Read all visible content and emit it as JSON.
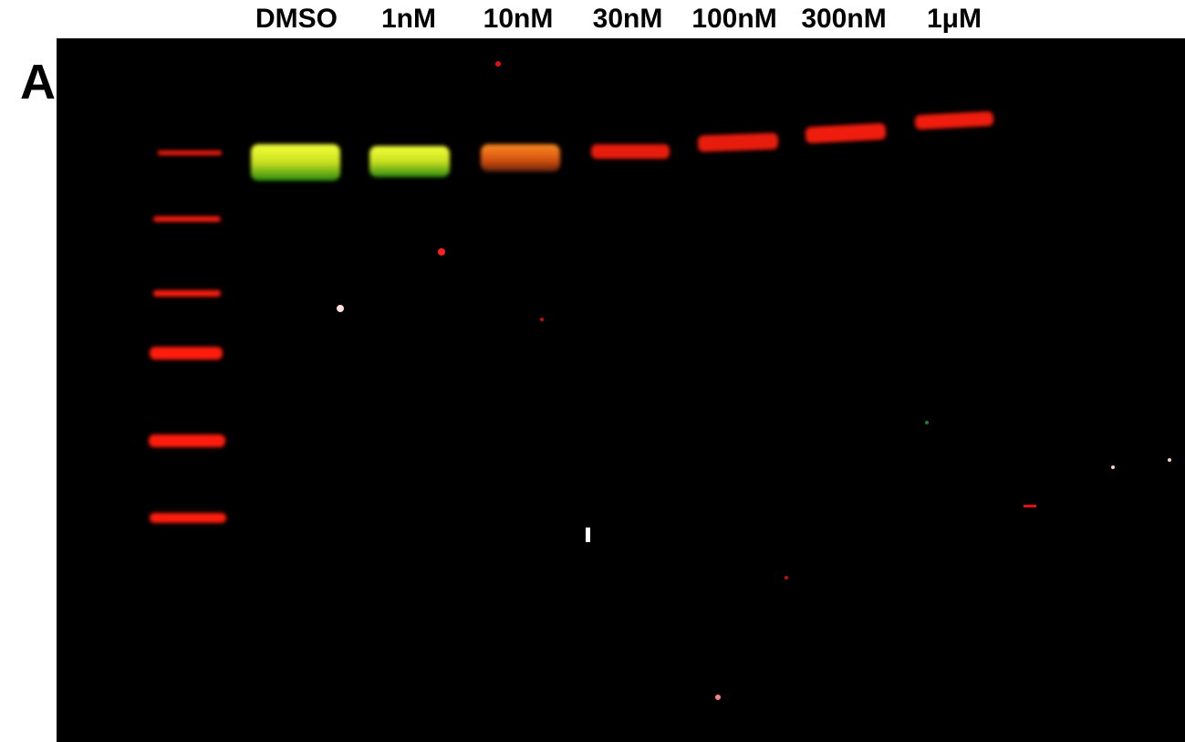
{
  "panel_label": "A",
  "lanes": [
    "DMSO",
    "1nM",
    "10nM",
    "30nM",
    "100nM",
    "300nM",
    "1μM"
  ]
}
